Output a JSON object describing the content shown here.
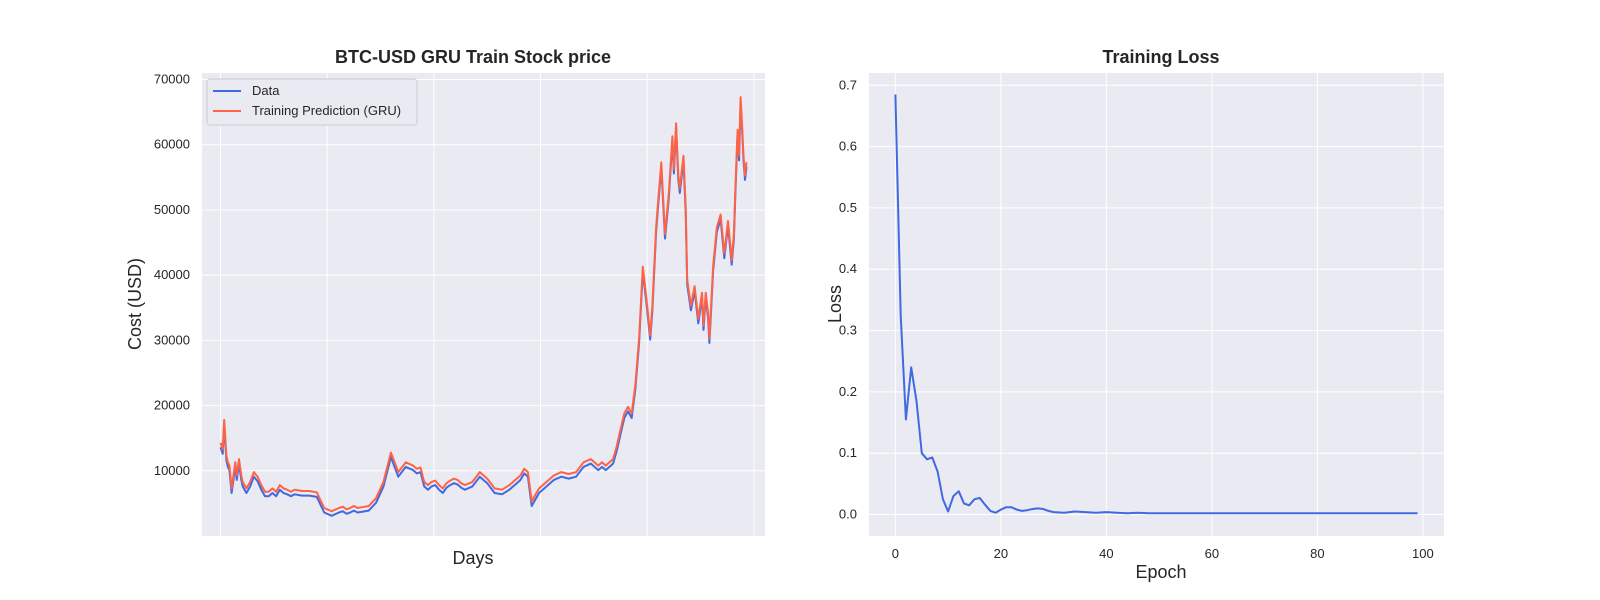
{
  "chart_data": [
    {
      "type": "line",
      "title": "BTC-USD GRU Train Stock price",
      "xlabel": "Days",
      "ylabel": "Cost (USD)",
      "ylim": [
        0,
        71000
      ],
      "xlim": [
        -25,
        735
      ],
      "y_ticks": [
        10000,
        20000,
        30000,
        40000,
        50000,
        60000,
        70000
      ],
      "x_ticks": [],
      "grid": true,
      "legend_position": "top-left",
      "series": [
        {
          "name": "Data",
          "color": "#4169e1",
          "x": [
            0,
            3,
            5,
            8,
            10,
            12,
            15,
            18,
            20,
            22,
            25,
            28,
            30,
            35,
            40,
            45,
            50,
            55,
            60,
            65,
            70,
            75,
            80,
            85,
            90,
            95,
            100,
            110,
            120,
            130,
            140,
            150,
            160,
            165,
            170,
            175,
            180,
            185,
            190,
            200,
            210,
            220,
            230,
            240,
            250,
            260,
            265,
            270,
            275,
            280,
            285,
            290,
            295,
            300,
            305,
            310,
            315,
            320,
            325,
            330,
            340,
            350,
            360,
            370,
            380,
            390,
            395,
            400,
            405,
            410,
            415,
            420,
            430,
            440,
            450,
            460,
            470,
            480,
            490,
            500,
            510,
            515,
            520,
            525,
            530,
            535,
            540,
            545,
            550,
            555,
            560,
            565,
            570,
            575,
            580,
            583,
            585,
            588,
            590,
            595,
            600,
            605,
            610,
            612,
            615,
            618,
            620,
            625,
            628,
            630,
            635,
            640,
            645,
            650,
            652,
            655,
            658,
            660,
            665,
            670,
            675,
            680,
            685,
            690,
            693,
            695,
            698,
            700,
            702,
            704,
            706,
            708,
            710
          ],
          "y": [
            14000,
            13000,
            17500,
            12000,
            11000,
            10500,
            7000,
            9500,
            11000,
            9000,
            11500,
            9000,
            8000,
            7000,
            8000,
            9500,
            8800,
            7500,
            6500,
            6500,
            7000,
            6500,
            7500,
            7000,
            6800,
            6500,
            6800,
            6600,
            6600,
            6400,
            4000,
            3500,
            4000,
            4200,
            3800,
            4000,
            4300,
            4000,
            4100,
            4300,
            5500,
            8000,
            12500,
            9500,
            11000,
            10500,
            10000,
            10200,
            8000,
            7500,
            8000,
            8200,
            7500,
            7000,
            7800,
            8200,
            8500,
            8300,
            7800,
            7500,
            8000,
            9500,
            8500,
            7000,
            6800,
            7500,
            8000,
            8500,
            9000,
            10000,
            9500,
            5000,
            7000,
            8000,
            9000,
            9500,
            9200,
            9500,
            11000,
            11500,
            10500,
            11000,
            10500,
            11000,
            11500,
            13500,
            16000,
            18500,
            19500,
            18500,
            23000,
            30000,
            41000,
            36000,
            30500,
            35000,
            40000,
            47000,
            50000,
            57000,
            46000,
            52000,
            61000,
            56000,
            63000,
            55000,
            53000,
            58000,
            50000,
            39000,
            35000,
            38000,
            33000,
            37000,
            32000,
            37000,
            34000,
            30000,
            41000,
            47000,
            49000,
            43000,
            48000,
            42000,
            46000,
            53000,
            62000,
            58000,
            67000,
            63000,
            58000,
            55000,
            57000
          ],
          "y_shift": -400
        },
        {
          "name": "Training Prediction (GRU)",
          "color": "#ff6347",
          "x": [
            0,
            3,
            5,
            8,
            10,
            12,
            15,
            18,
            20,
            22,
            25,
            28,
            30,
            35,
            40,
            45,
            50,
            55,
            60,
            65,
            70,
            75,
            80,
            85,
            90,
            95,
            100,
            110,
            120,
            130,
            140,
            150,
            160,
            165,
            170,
            175,
            180,
            185,
            190,
            200,
            210,
            220,
            230,
            240,
            250,
            260,
            265,
            270,
            275,
            280,
            285,
            290,
            295,
            300,
            305,
            310,
            315,
            320,
            325,
            330,
            340,
            350,
            360,
            370,
            380,
            390,
            395,
            400,
            405,
            410,
            415,
            420,
            430,
            440,
            450,
            460,
            470,
            480,
            490,
            500,
            510,
            515,
            520,
            525,
            530,
            535,
            540,
            545,
            550,
            555,
            560,
            565,
            570,
            575,
            580,
            583,
            585,
            588,
            590,
            595,
            600,
            605,
            610,
            612,
            615,
            618,
            620,
            625,
            628,
            630,
            635,
            640,
            645,
            650,
            652,
            655,
            658,
            660,
            665,
            670,
            675,
            680,
            685,
            690,
            693,
            695,
            698,
            700,
            702,
            704,
            706,
            708,
            710
          ],
          "y": [
            14000,
            13000,
            17500,
            12000,
            11000,
            10500,
            7000,
            9500,
            11000,
            9000,
            11500,
            9000,
            8000,
            7000,
            8000,
            9500,
            8800,
            7500,
            6500,
            6500,
            7000,
            6500,
            7500,
            7000,
            6800,
            6500,
            6800,
            6600,
            6600,
            6400,
            4000,
            3500,
            4000,
            4200,
            3800,
            4000,
            4300,
            4000,
            4100,
            4300,
            5500,
            8000,
            12500,
            9500,
            11000,
            10500,
            10000,
            10200,
            8000,
            7500,
            8000,
            8200,
            7500,
            7000,
            7800,
            8200,
            8500,
            8300,
            7800,
            7500,
            8000,
            9500,
            8500,
            7000,
            6800,
            7500,
            8000,
            8500,
            9000,
            10000,
            9500,
            5000,
            7000,
            8000,
            9000,
            9500,
            9200,
            9500,
            11000,
            11500,
            10500,
            11000,
            10500,
            11000,
            11500,
            13500,
            16000,
            18500,
            19500,
            18500,
            23000,
            30000,
            41000,
            36000,
            30500,
            35000,
            40000,
            47000,
            50000,
            57000,
            46000,
            52000,
            61000,
            56000,
            63000,
            55000,
            53000,
            58000,
            50000,
            39000,
            35000,
            38000,
            33000,
            37000,
            32000,
            37000,
            34000,
            30000,
            41000,
            47000,
            49000,
            43000,
            48000,
            42000,
            46000,
            53000,
            62000,
            58000,
            67000,
            63000,
            58000,
            55000,
            57000
          ],
          "y_shift": 300
        }
      ]
    },
    {
      "type": "line",
      "title": "Training Loss",
      "xlabel": "Epoch",
      "ylabel": "Loss",
      "xlim": [
        -5,
        104
      ],
      "ylim": [
        -0.035,
        0.72
      ],
      "x_ticks": [
        0,
        20,
        40,
        60,
        80,
        100
      ],
      "y_ticks": [
        0.0,
        0.1,
        0.2,
        0.3,
        0.4,
        0.5,
        0.6,
        0.7
      ],
      "grid": true,
      "series": [
        {
          "color": "#4169e1",
          "x": [
            0,
            1,
            2,
            3,
            4,
            5,
            6,
            7,
            8,
            9,
            10,
            11,
            12,
            13,
            14,
            15,
            16,
            17,
            18,
            19,
            20,
            21,
            22,
            23,
            24,
            25,
            26,
            27,
            28,
            29,
            30,
            32,
            34,
            36,
            38,
            40,
            42,
            44,
            46,
            48,
            50,
            55,
            60,
            65,
            70,
            75,
            80,
            85,
            90,
            95,
            99
          ],
          "y": [
            0.685,
            0.325,
            0.155,
            0.24,
            0.185,
            0.1,
            0.09,
            0.093,
            0.07,
            0.025,
            0.005,
            0.03,
            0.038,
            0.018,
            0.015,
            0.025,
            0.027,
            0.016,
            0.006,
            0.003,
            0.008,
            0.012,
            0.012,
            0.008,
            0.006,
            0.007,
            0.009,
            0.01,
            0.009,
            0.006,
            0.004,
            0.003,
            0.005,
            0.004,
            0.003,
            0.004,
            0.003,
            0.002,
            0.003,
            0.002,
            0.002,
            0.002,
            0.002,
            0.002,
            0.002,
            0.002,
            0.002,
            0.002,
            0.002,
            0.002,
            0.002
          ]
        }
      ]
    }
  ]
}
